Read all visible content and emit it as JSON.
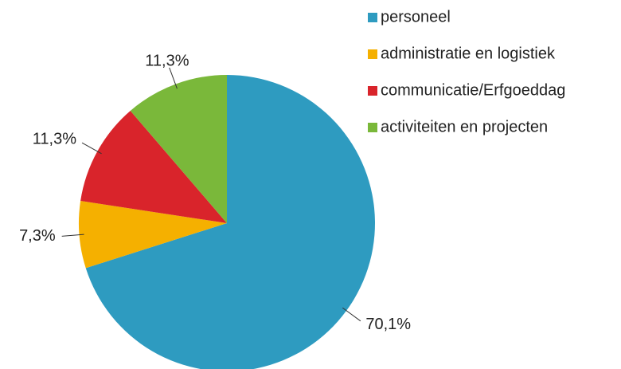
{
  "chart_data": {
    "type": "pie",
    "categories": [
      "personeel",
      "administratie en logistiek",
      "communicatie/Erfgoeddag",
      "activiteiten en projecten"
    ],
    "values": [
      70.1,
      7.3,
      11.3,
      11.3
    ],
    "value_labels": [
      "70,1%",
      "7,3%",
      "11,3%",
      "11,3%"
    ],
    "colors": [
      "#2e9bc0",
      "#f5b000",
      "#d9242b",
      "#7ab83a"
    ],
    "legend": "right"
  }
}
